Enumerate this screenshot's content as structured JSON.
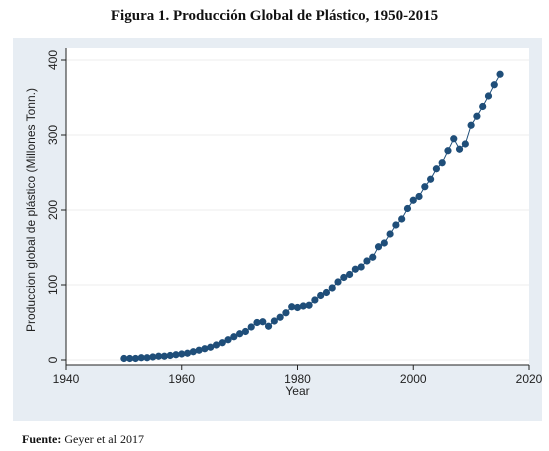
{
  "title": "Figura 1. Producción Global de Plástico, 1950-2015",
  "source": {
    "label": "Fuente:",
    "text": "Geyer et al 2017"
  },
  "colors": {
    "panel_bg": "#e7edf3",
    "plot_bg": "#ffffff",
    "marker": "#1f4e79",
    "line": "#1f4e79",
    "grid": "#eeeeee"
  },
  "chart_data": {
    "type": "line",
    "title": "Figura 1. Producción Global de Plástico, 1950-2015",
    "xlabel": "Year",
    "ylabel": "Produccion global de plástico (Millones Tonn.)",
    "xlim": [
      1940,
      2020
    ],
    "ylim": [
      0,
      400
    ],
    "xticks": [
      1940,
      1960,
      1980,
      2000,
      2020
    ],
    "yticks": [
      0,
      100,
      200,
      300,
      400
    ],
    "grid": true,
    "markers": true,
    "x": [
      1950,
      1951,
      1952,
      1953,
      1954,
      1955,
      1956,
      1957,
      1958,
      1959,
      1960,
      1961,
      1962,
      1963,
      1964,
      1965,
      1966,
      1967,
      1968,
      1969,
      1970,
      1971,
      1972,
      1973,
      1974,
      1975,
      1976,
      1977,
      1978,
      1979,
      1980,
      1981,
      1982,
      1983,
      1984,
      1985,
      1986,
      1987,
      1988,
      1989,
      1990,
      1991,
      1992,
      1993,
      1994,
      1995,
      1996,
      1997,
      1998,
      1999,
      2000,
      2001,
      2002,
      2003,
      2004,
      2005,
      2006,
      2007,
      2008,
      2009,
      2010,
      2011,
      2012,
      2013,
      2014,
      2015
    ],
    "series": [
      {
        "values": [
          2,
          2,
          2,
          3,
          3,
          4,
          5,
          5,
          6,
          7,
          8,
          9,
          11,
          13,
          15,
          17,
          20,
          23,
          27,
          31,
          35,
          38,
          44,
          50,
          51,
          45,
          52,
          57,
          63,
          71,
          70,
          72,
          73,
          80,
          86,
          90,
          96,
          104,
          110,
          114,
          121,
          124,
          132,
          137,
          151,
          156,
          168,
          180,
          188,
          202,
          213,
          218,
          231,
          241,
          255,
          263,
          279,
          295,
          281,
          288,
          313,
          325,
          338,
          352,
          367,
          381
        ]
      }
    ]
  }
}
